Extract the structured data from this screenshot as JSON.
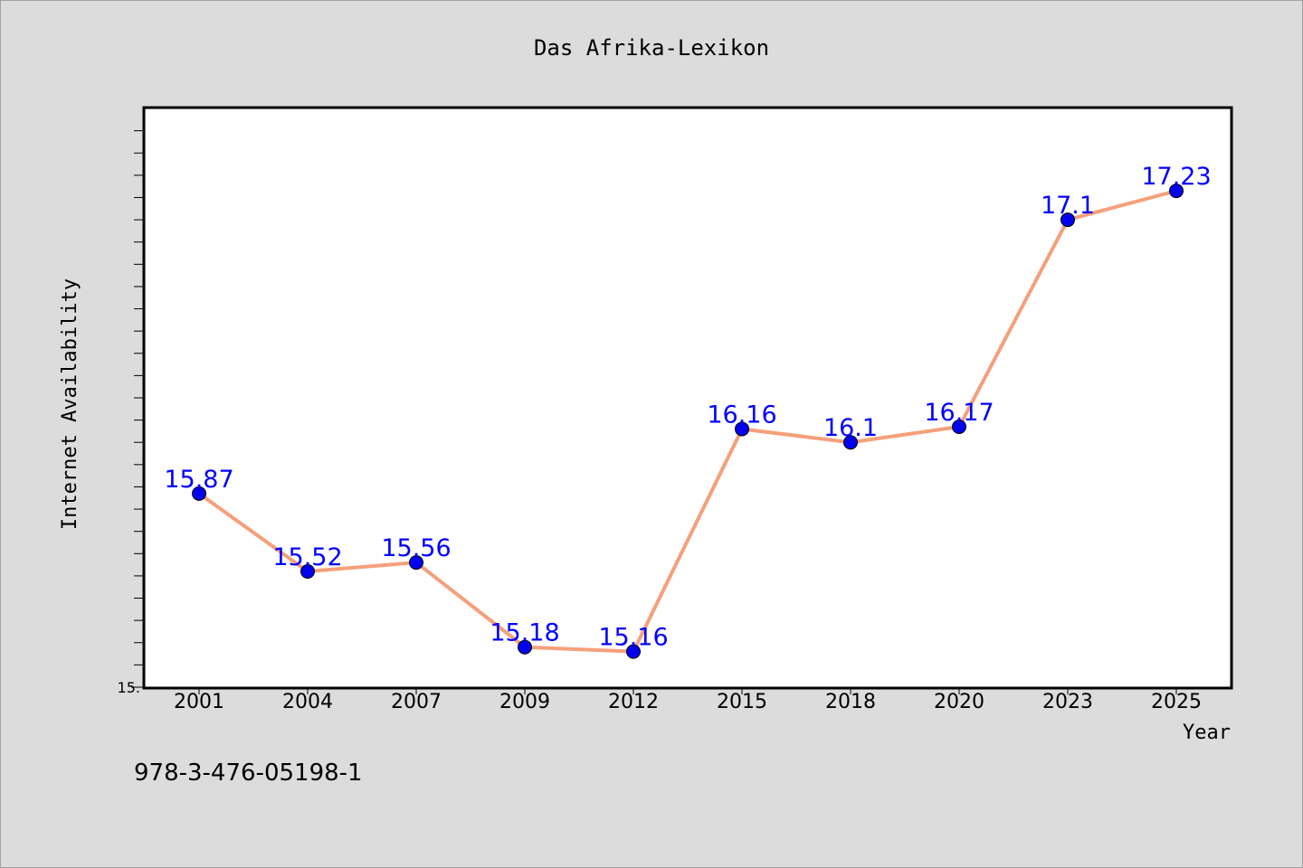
{
  "chart_data": {
    "type": "line",
    "title": "Das Afrika-Lexikon",
    "xlabel": "Year",
    "ylabel": "Internet Availability",
    "categories": [
      "2001",
      "2004",
      "2007",
      "2009",
      "2012",
      "2015",
      "2018",
      "2020",
      "2023",
      "2025"
    ],
    "series": [
      {
        "values": [
          15.87,
          15.52,
          15.56,
          15.18,
          15.16,
          16.16,
          16.1,
          16.17,
          17.1,
          17.23
        ]
      }
    ],
    "data_labels": [
      "15.87",
      "15.52",
      "15.56",
      "15.18",
      "15.16",
      "16.16",
      "16.1",
      "16.17",
      "17.1",
      "17.23"
    ],
    "y_tick_label": "15.",
    "ylim": [
      15.0,
      17.6
    ],
    "grid": false,
    "line_color": "#f5a07a",
    "marker_color": "#0000ee",
    "label_color": "#0000ff",
    "background_color": "#dcdcdc",
    "plot_background": "#ffffff"
  },
  "footer": {
    "isbn": "978-3-476-05198-1"
  }
}
